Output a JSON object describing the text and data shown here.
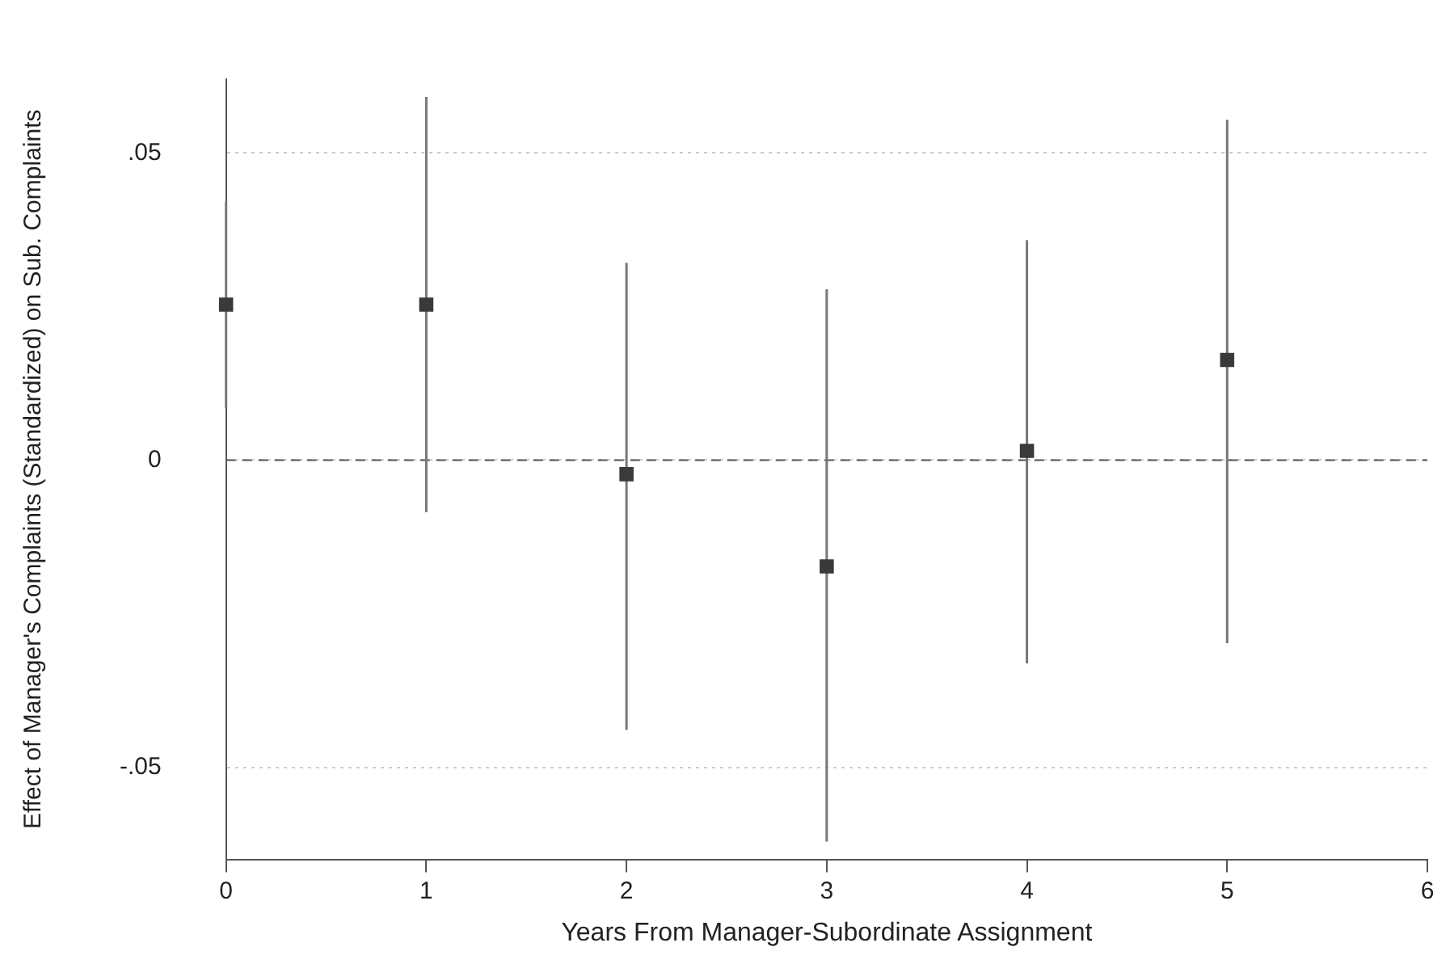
{
  "chart_data": {
    "type": "scatter",
    "xlabel": "Years From Manager-Subordinate Assignment",
    "ylabel": "Effect of Manager's Complaints (Standardized) on Sub. Complaints",
    "x": [
      0,
      1,
      2,
      3,
      4,
      5
    ],
    "series": [
      {
        "color": "#3a3a3a",
        "values": [
          0.0253,
          0.0253,
          -0.0023,
          -0.0173,
          0.0015,
          0.0163
        ],
        "errors": [
          [
            0.0085,
            0.0421
          ],
          [
            -0.0085,
            0.0591
          ],
          [
            -0.0439,
            0.0321
          ],
          [
            -0.0621,
            0.0278
          ],
          [
            -0.0331,
            0.0358
          ],
          [
            -0.0298,
            0.0554
          ]
        ]
      }
    ],
    "xlim": [
      0,
      6
    ],
    "xticks": [
      0,
      1,
      2,
      3,
      4,
      5,
      6
    ],
    "ylim": [
      -0.065,
      0.062
    ],
    "yticks": [
      {
        "value": -0.05,
        "label": "-.05"
      },
      0,
      {
        "value": 0.05,
        "label": ".05"
      }
    ],
    "grid": "y",
    "marker": "square",
    "legend": false,
    "ref_lines": [
      {
        "axis": "y",
        "value": 0,
        "color": "#555555",
        "line_style": "dashed"
      }
    ]
  }
}
